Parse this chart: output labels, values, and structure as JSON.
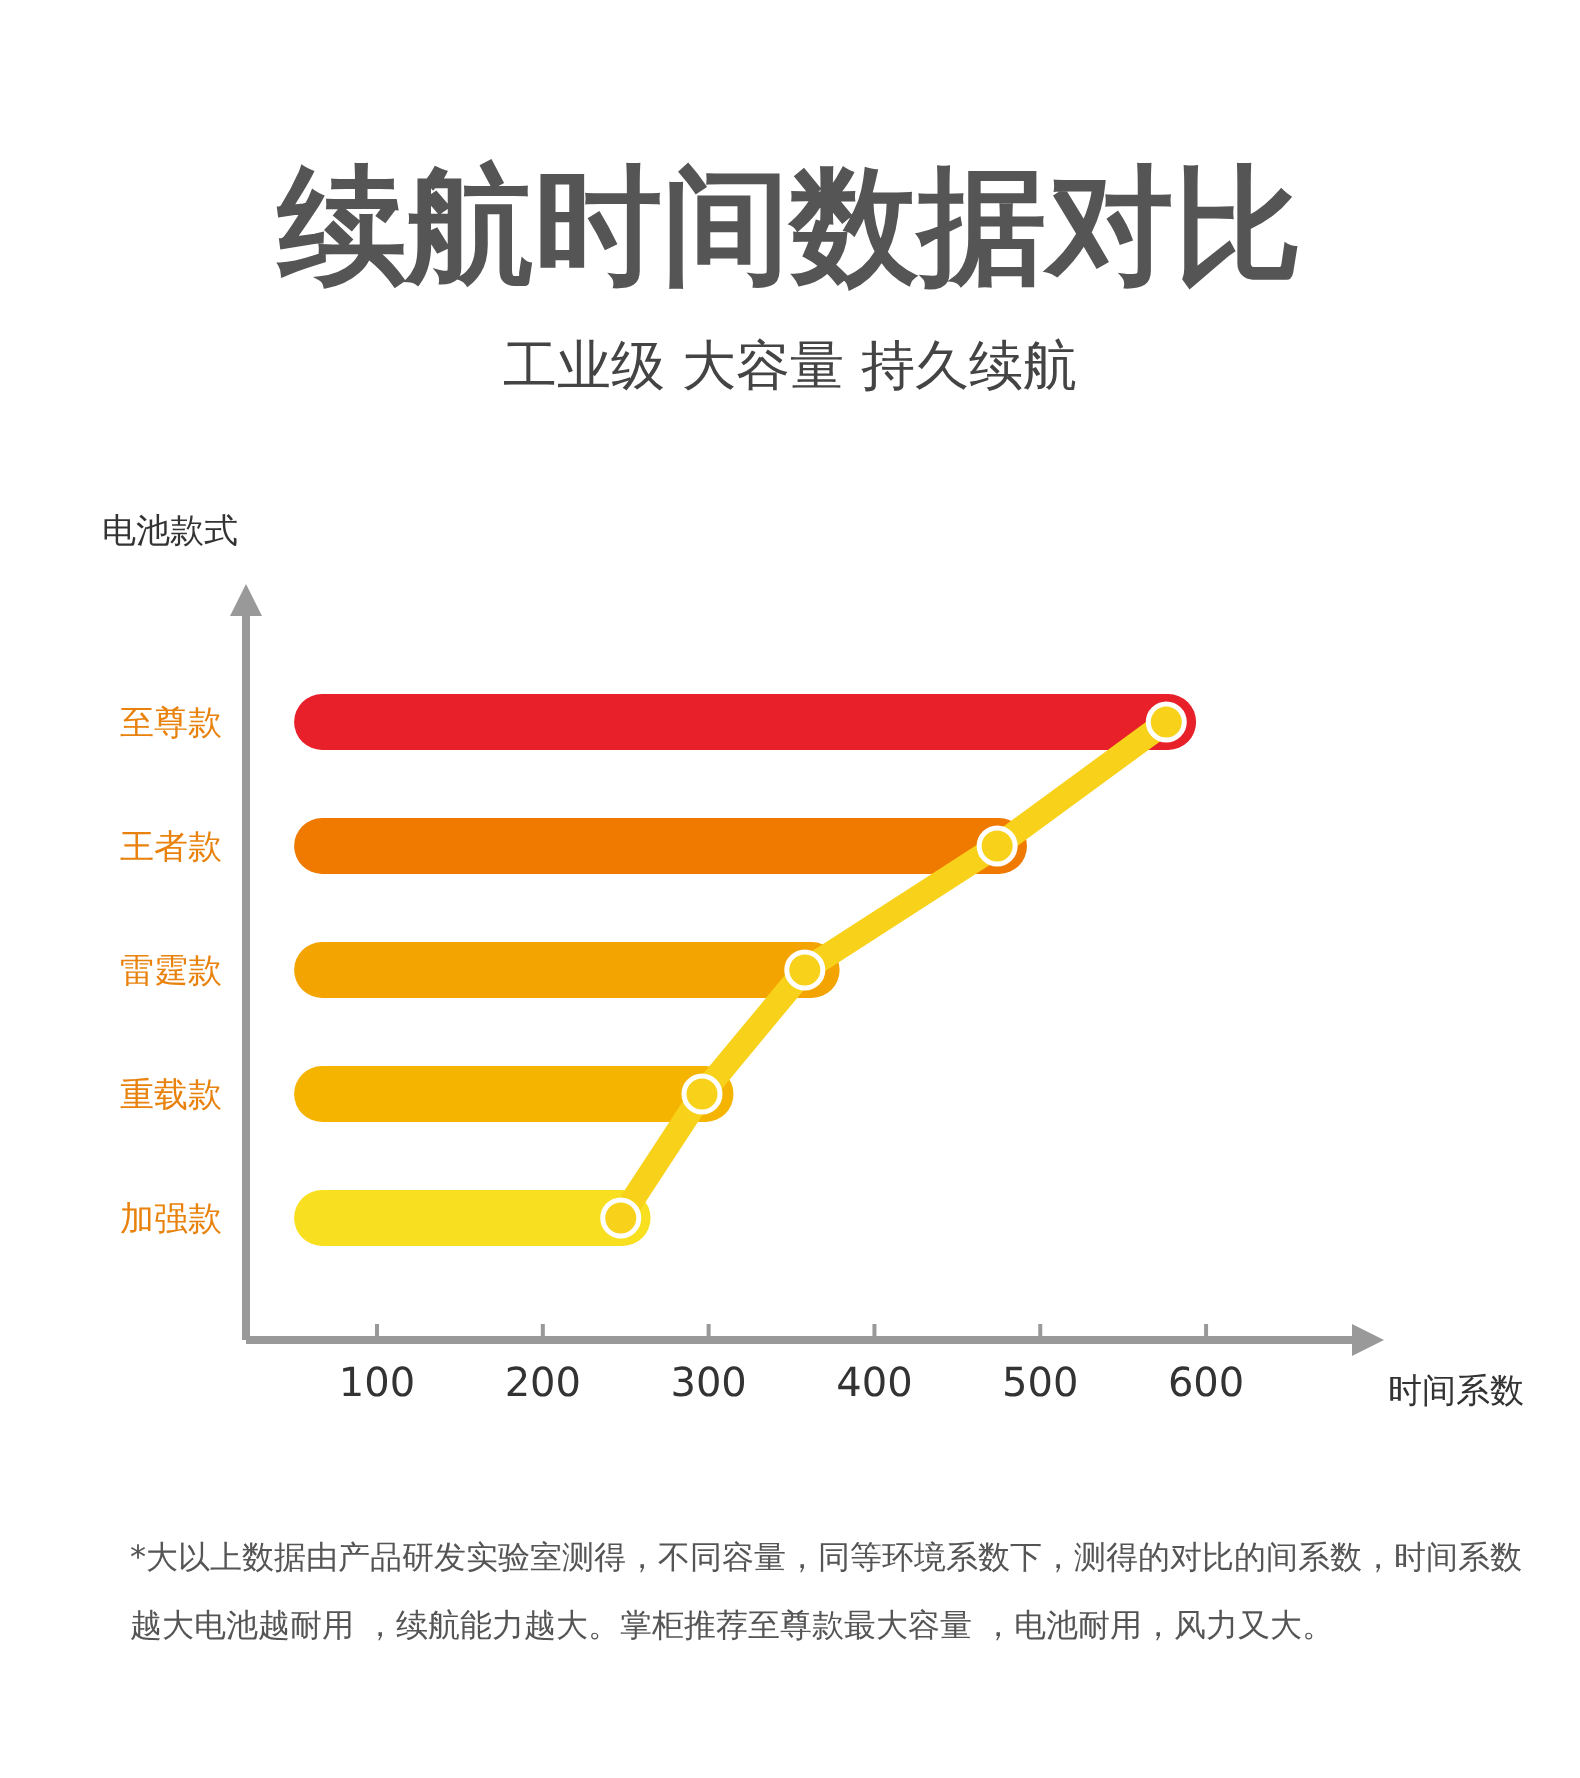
{
  "chart_data": {
    "type": "bar",
    "orientation": "horizontal",
    "title": "续航时间数据对比",
    "subtitle": "工业级 大容量 持久续航",
    "xlabel": "时间系数",
    "ylabel": "电池款式",
    "categories": [
      "至尊款",
      "王者款",
      "雷霆款",
      "重载款",
      "加强款"
    ],
    "xlim": [
      21,
      688
    ],
    "xticks": [
      100,
      200,
      300,
      400,
      500,
      600
    ],
    "series": [
      {
        "type": "bar",
        "base": [
          50,
          50,
          50,
          50,
          50
        ],
        "values": [
          544,
          442,
          329,
          265,
          215
        ],
        "colors": [
          "#e8202a",
          "#f07a00",
          "#f3a400",
          "#f5b400",
          "#f8e020"
        ]
      },
      {
        "type": "line",
        "color": "#f8d21a",
        "marker": "circle",
        "values": [
          576,
          474,
          358,
          296,
          247
        ]
      }
    ],
    "annotations": [
      "*大以上数据由产品研发实验室测得，不同容量，同等环境系数下，测得的对比的间系数，时间系数越大电池越耐用 ，续航能力越大。掌柜推荐至尊款最大容量 ，电池耐用，风力又大。"
    ]
  }
}
